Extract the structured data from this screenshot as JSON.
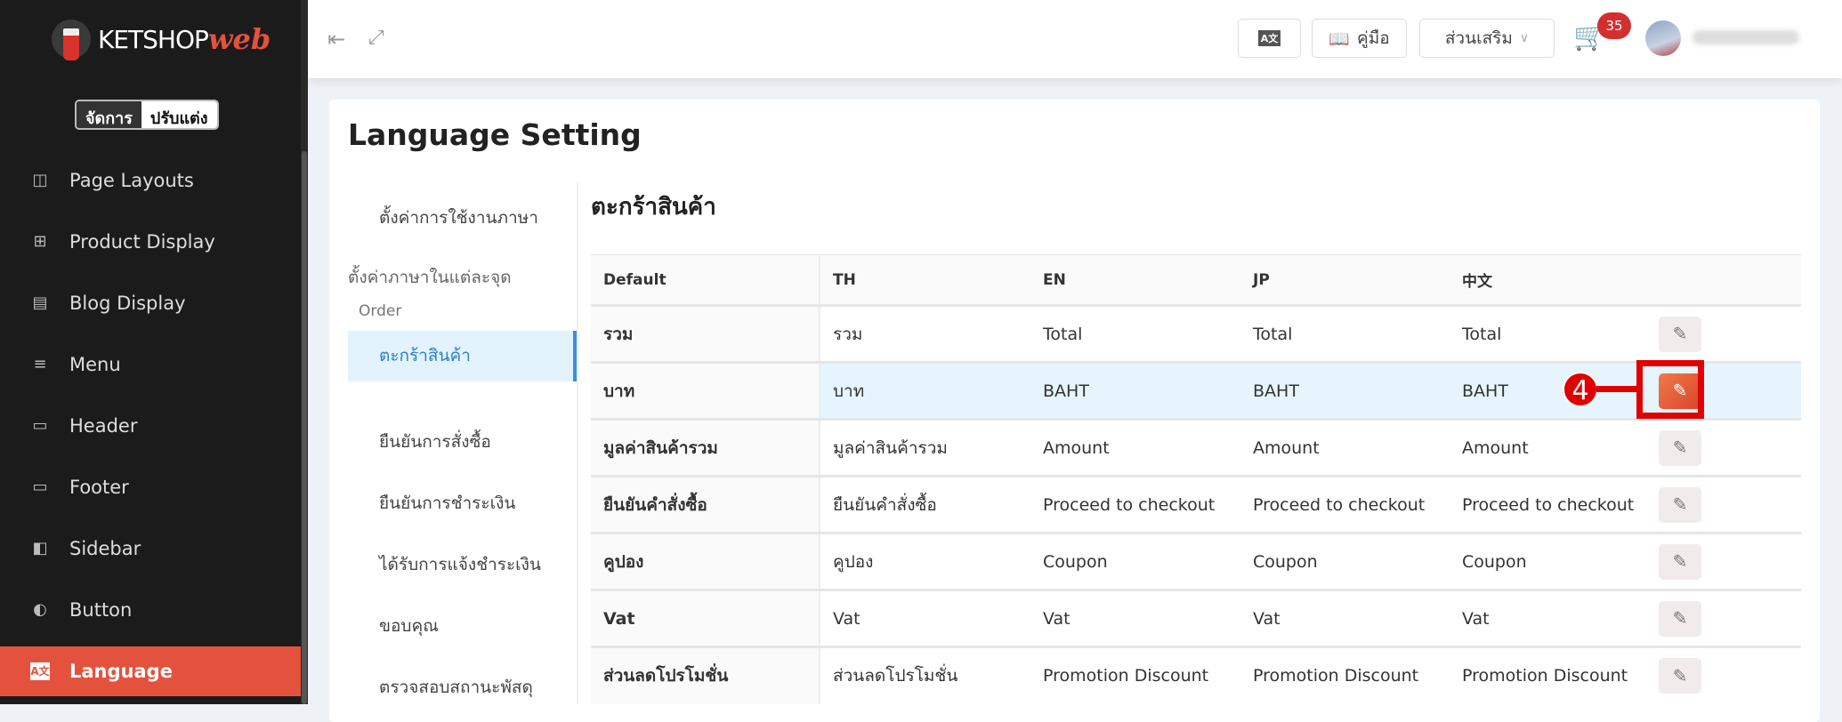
{
  "brand": {
    "logo_text": "KETSHOP",
    "logo_script": "web"
  },
  "mode_toggle": {
    "manage": "จัดการ",
    "customize": "ปรับแต่ง"
  },
  "sidebar": {
    "items": [
      {
        "label": "Page Layouts",
        "icon": "page-layout-icon",
        "glyph": "◫"
      },
      {
        "label": "Product Display",
        "icon": "grid-icon",
        "glyph": "⊞"
      },
      {
        "label": "Blog Display",
        "icon": "list-icon",
        "glyph": "▤"
      },
      {
        "label": "Menu",
        "icon": "hamburger-icon",
        "glyph": "≡"
      },
      {
        "label": "Header",
        "icon": "header-icon",
        "glyph": "▭"
      },
      {
        "label": "Footer",
        "icon": "footer-icon",
        "glyph": "▭"
      },
      {
        "label": "Sidebar",
        "icon": "sidebar-icon",
        "glyph": "◧"
      },
      {
        "label": "Button",
        "icon": "toggle-icon",
        "glyph": "◐"
      },
      {
        "label": "Language",
        "icon": "translate-icon",
        "glyph": "A文",
        "active": true
      }
    ]
  },
  "topbar": {
    "manual": "คู่มือ",
    "addons": "ส่วนเสริม",
    "cart_count": "35"
  },
  "page": {
    "title": "Language Setting",
    "section_title": "ตะกร้าสินค้า"
  },
  "subnav": {
    "general": "ตั้งค่าการใช้งานภาษา",
    "per_point": "ตั้งค่าภาษาในแต่ละจุด",
    "group": "Order",
    "items": [
      "ตะกร้าสินค้า",
      "ยืนยันการสั่งซื้อ",
      "ยืนยันการชำระเงิน",
      "ได้รับการแจ้งชำระเงิน",
      "ขอบคุณ",
      "ตรวจสอบสถานะพัสดุ"
    ],
    "active_index": 0
  },
  "table": {
    "headers": [
      "Default",
      "TH",
      "EN",
      "JP",
      "中文"
    ],
    "rows": [
      [
        "รวม",
        "รวม",
        "Total",
        "Total",
        "Total"
      ],
      [
        "บาท",
        "บาท",
        "BAHT",
        "BAHT",
        "BAHT"
      ],
      [
        "มูลค่าสินค้ารวม",
        "มูลค่าสินค้ารวม",
        "Amount",
        "Amount",
        "Amount"
      ],
      [
        "ยืนยันคำสั่งซื้อ",
        "ยืนยันคำสั่งซื้อ",
        "Proceed to checkout",
        "Proceed to checkout",
        "Proceed to checkout"
      ],
      [
        "คูปอง",
        "คูปอง",
        "Coupon",
        "Coupon",
        "Coupon"
      ],
      [
        "Vat",
        "Vat",
        "Vat",
        "Vat",
        "Vat"
      ],
      [
        "ส่วนลดโปรโมชั่น",
        "ส่วนลดโปรโมชั่น",
        "Promotion Discount",
        "Promotion Discount",
        "Promotion Discount"
      ]
    ],
    "highlighted_row": 1
  },
  "annotation": {
    "step": "4"
  },
  "colors": {
    "accent": "#e4523d",
    "sidebar_bg": "#1c1b1c",
    "highlight_row": "#e6f4fd",
    "subnav_active": "#e3f3fd",
    "annotation": "#e00000"
  }
}
